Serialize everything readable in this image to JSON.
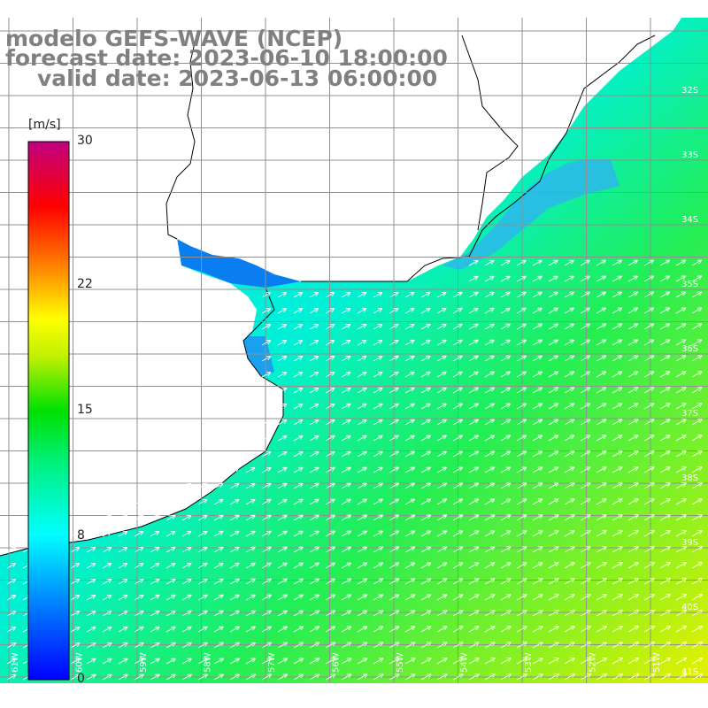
{
  "title": {
    "model": "modelo GEFS-WAVE (NCEP)",
    "forecast_date": "forecast date: 2023-06-10 18:00:00",
    "valid_date": "valid date: 2023-06-13 06:00:00"
  },
  "colorbar": {
    "unit": "[m/s]",
    "min": 0,
    "max": 30,
    "ticks": [
      {
        "value": 30,
        "label": "30"
      },
      {
        "value": 22,
        "label": "22"
      },
      {
        "value": 15,
        "label": "15"
      },
      {
        "value": 8,
        "label": "8"
      },
      {
        "value": 0,
        "label": "0"
      }
    ],
    "colors": [
      "#0000ff",
      "#0080ff",
      "#00ffff",
      "#00ff00",
      "#ffff00",
      "#ff8000",
      "#ff0000",
      "#c00080"
    ]
  },
  "map": {
    "variable": "wind speed",
    "lon_labels": [
      "61W",
      "60W",
      "59W",
      "58W",
      "57W",
      "56W",
      "55W",
      "54W",
      "53W",
      "52W",
      "51W"
    ],
    "lat_labels": [
      "32S",
      "33S",
      "34S",
      "35S",
      "36S",
      "37S",
      "38S",
      "39S",
      "40S",
      "41S"
    ],
    "land_color": "#ffffff",
    "grid_color": "#a0a0a0",
    "arrow_color": "#ffffff",
    "wind_direction": "from southwest"
  }
}
